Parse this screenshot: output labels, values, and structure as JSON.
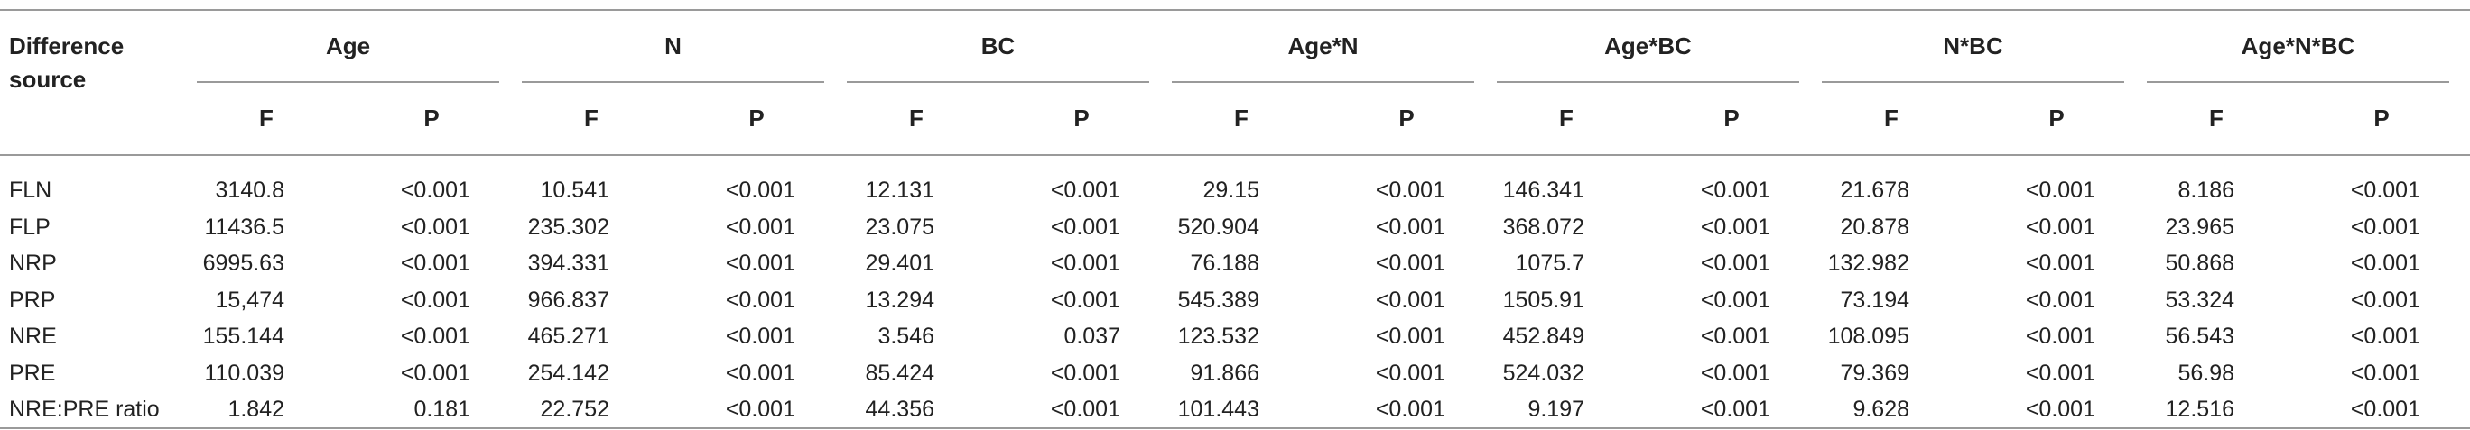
{
  "table": {
    "row_header_label_line1": "Difference",
    "row_header_label_line2": "source",
    "groups": [
      "Age",
      "N",
      "BC",
      "Age*N",
      "Age*BC",
      "N*BC",
      "Age*N*BC"
    ],
    "subheaders": [
      "F",
      "P"
    ],
    "rows": [
      {
        "label": "FLN",
        "values": [
          "3140.8",
          "<0.001",
          "10.541",
          "<0.001",
          "12.131",
          "<0.001",
          "29.15",
          "<0.001",
          "146.341",
          "<0.001",
          "21.678",
          "<0.001",
          "8.186",
          "<0.001"
        ]
      },
      {
        "label": "FLP",
        "values": [
          "11436.5",
          "<0.001",
          "235.302",
          "<0.001",
          "23.075",
          "<0.001",
          "520.904",
          "<0.001",
          "368.072",
          "<0.001",
          "20.878",
          "<0.001",
          "23.965",
          "<0.001"
        ]
      },
      {
        "label": "NRP",
        "values": [
          "6995.63",
          "<0.001",
          "394.331",
          "<0.001",
          "29.401",
          "<0.001",
          "76.188",
          "<0.001",
          "1075.7",
          "<0.001",
          "132.982",
          "<0.001",
          "50.868",
          "<0.001"
        ]
      },
      {
        "label": "PRP",
        "values": [
          "15,474",
          "<0.001",
          "966.837",
          "<0.001",
          "13.294",
          "<0.001",
          "545.389",
          "<0.001",
          "1505.91",
          "<0.001",
          "73.194",
          "<0.001",
          "53.324",
          "<0.001"
        ]
      },
      {
        "label": "NRE",
        "values": [
          "155.144",
          "<0.001",
          "465.271",
          "<0.001",
          "3.546",
          "0.037",
          "123.532",
          "<0.001",
          "452.849",
          "<0.001",
          "108.095",
          "<0.001",
          "56.543",
          "<0.001"
        ]
      },
      {
        "label": "PRE",
        "values": [
          "110.039",
          "<0.001",
          "254.142",
          "<0.001",
          "85.424",
          "<0.001",
          "91.866",
          "<0.001",
          "524.032",
          "<0.001",
          "79.369",
          "<0.001",
          "56.98",
          "<0.001"
        ]
      },
      {
        "label": "NRE:PRE ratio",
        "values": [
          "1.842",
          "0.181",
          "22.752",
          "<0.001",
          "44.356",
          "<0.001",
          "101.443",
          "<0.001",
          "9.197",
          "<0.001",
          "9.628",
          "<0.001",
          "12.516",
          "<0.001"
        ]
      }
    ]
  }
}
